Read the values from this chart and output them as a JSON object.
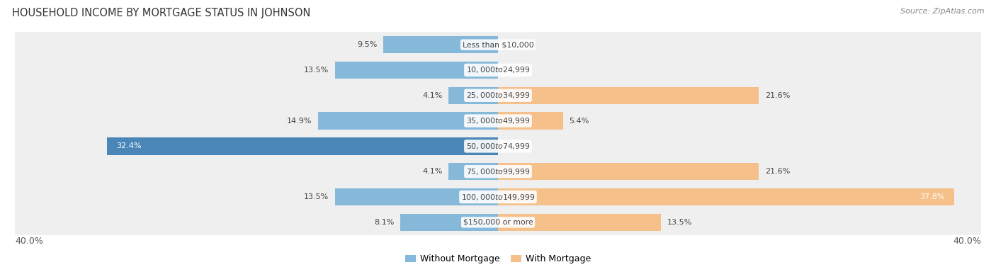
{
  "title": "HOUSEHOLD INCOME BY MORTGAGE STATUS IN JOHNSON",
  "source": "Source: ZipAtlas.com",
  "categories": [
    "Less than $10,000",
    "$10,000 to $24,999",
    "$25,000 to $34,999",
    "$35,000 to $49,999",
    "$50,000 to $74,999",
    "$75,000 to $99,999",
    "$100,000 to $149,999",
    "$150,000 or more"
  ],
  "without_mortgage": [
    9.5,
    13.5,
    4.1,
    14.9,
    32.4,
    4.1,
    13.5,
    8.1
  ],
  "with_mortgage": [
    0.0,
    0.0,
    21.6,
    5.4,
    0.0,
    21.6,
    37.8,
    13.5
  ],
  "axis_limit": 40.0,
  "color_without": "#85b8d9",
  "color_without_dark": "#4a86b8",
  "color_with": "#f5c08a",
  "label_color_dark": "#444444",
  "label_color_light": "#ffffff",
  "legend_label_without": "Without Mortgage",
  "legend_label_with": "With Mortgage",
  "row_bg_color": "#eeeeee",
  "row_bg_alt": "#f7f7f7"
}
